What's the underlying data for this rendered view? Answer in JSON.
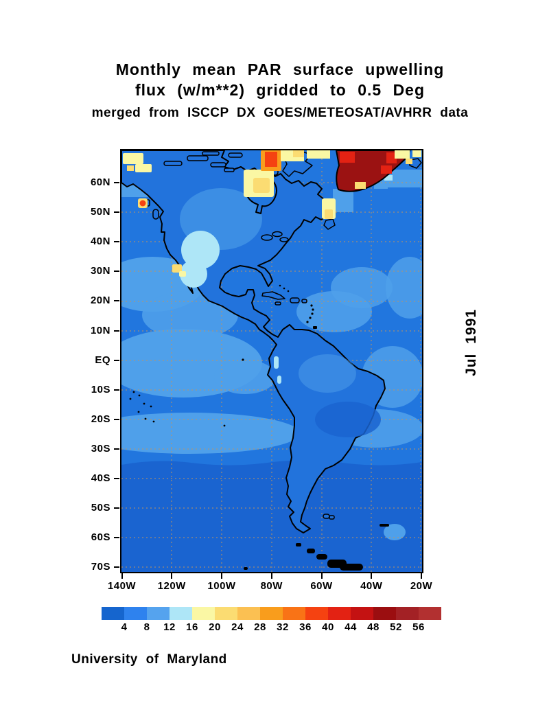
{
  "header": {
    "title_line1": "Monthly mean PAR surface upwelling",
    "title_line2": "flux (w/m**2) gridded to 0.5 Deg",
    "subtitle": "merged from ISCCP DX GOES/METEOSAT/AVHRR data"
  },
  "side_label": "Jul 1991",
  "footer": {
    "credit": "University of Maryland"
  },
  "axes": {
    "lat_ticks": [
      "60N",
      "50N",
      "40N",
      "30N",
      "20N",
      "10N",
      "EQ",
      "10S",
      "20S",
      "30S",
      "40S",
      "50S",
      "60S",
      "70S"
    ],
    "lon_ticks": [
      "140W",
      "120W",
      "100W",
      "80W",
      "60W",
      "40W",
      "20W"
    ]
  },
  "colorbar": {
    "labels": [
      "4",
      "8",
      "12",
      "16",
      "20",
      "24",
      "28",
      "32",
      "36",
      "40",
      "44",
      "48",
      "52",
      "56"
    ],
    "colors": [
      "#1565CE",
      "#2E82EE",
      "#55A3EE",
      "#AEE6F7",
      "#FAF7A4",
      "#FBDC72",
      "#FBC052",
      "#F99D1C",
      "#F97316",
      "#F54211",
      "#E32213",
      "#C41212",
      "#9B0E10",
      "#A32125",
      "#B23030"
    ]
  },
  "map": {
    "palette": {
      "ocean": "#2176DE",
      "ocean_deep": "#1A64D0",
      "land": "#2273DC",
      "shade8": "#4FA0EA",
      "shade12": "#AEE6F7",
      "shade16": "#FAF7A4",
      "shade20": "#FBDC72",
      "shade28": "#F99D1C",
      "shade36": "#F54211",
      "shade40": "#E32213",
      "greenland": "#9B1212",
      "coast": "#000000",
      "grid": "#C2955F"
    }
  },
  "chart_data": {
    "type": "heatmap",
    "title": "Monthly mean PAR surface upwelling flux (w/m**2) gridded to 0.5 Deg",
    "subtitle": "merged from ISCCP DX GOES/METEOSAT/AVHRR data",
    "period": "Jul 1991",
    "units": "w/m**2",
    "grid_resolution_deg": 0.5,
    "source": "ISCCP DX GOES/METEOSAT/AVHRR",
    "region": {
      "lon_range": [
        "140W",
        "20W"
      ],
      "lat_range": [
        "~72S",
        "~71N"
      ]
    },
    "x_tick_labels": [
      "140W",
      "120W",
      "100W",
      "80W",
      "60W",
      "40W",
      "20W"
    ],
    "y_tick_labels": [
      "60N",
      "50N",
      "40N",
      "30N",
      "20N",
      "10N",
      "EQ",
      "10S",
      "20S",
      "30S",
      "40S",
      "50S",
      "60S",
      "70S"
    ],
    "color_levels": [
      4,
      8,
      12,
      16,
      20,
      24,
      28,
      32,
      36,
      40,
      44,
      48,
      52,
      56
    ],
    "color_hex": [
      "#1565CE",
      "#2E82EE",
      "#55A3EE",
      "#AEE6F7",
      "#FAF7A4",
      "#FBDC72",
      "#FBC052",
      "#F99D1C",
      "#F97316",
      "#F54211",
      "#E32213",
      "#C41212",
      "#9B0E10",
      "#A32125",
      "#B23030"
    ],
    "legend_position": "bottom",
    "grid_lines": "dashed tan, every 10 deg latitude and 20 deg longitude",
    "approx_field_summary": [
      {
        "region": "Tropical and mid-latitude open ocean",
        "approx_value": "4-8"
      },
      {
        "region": "Subtropical Pacific / Atlantic lighter patches",
        "approx_value": "8-12"
      },
      {
        "region": "Western US / Mexico interior patches",
        "approx_value": "12-16"
      },
      {
        "region": "Arctic Canada, Foxe Basin / Baffin area",
        "approx_value": "16-28"
      },
      {
        "region": "Northern Baffin Bay cell",
        "approx_value": "36-44"
      },
      {
        "region": "Alaska coastal glacier spot",
        "approx_value": "36-44"
      },
      {
        "region": "Greenland ice sheet",
        "approx_value": ">56"
      }
    ]
  }
}
